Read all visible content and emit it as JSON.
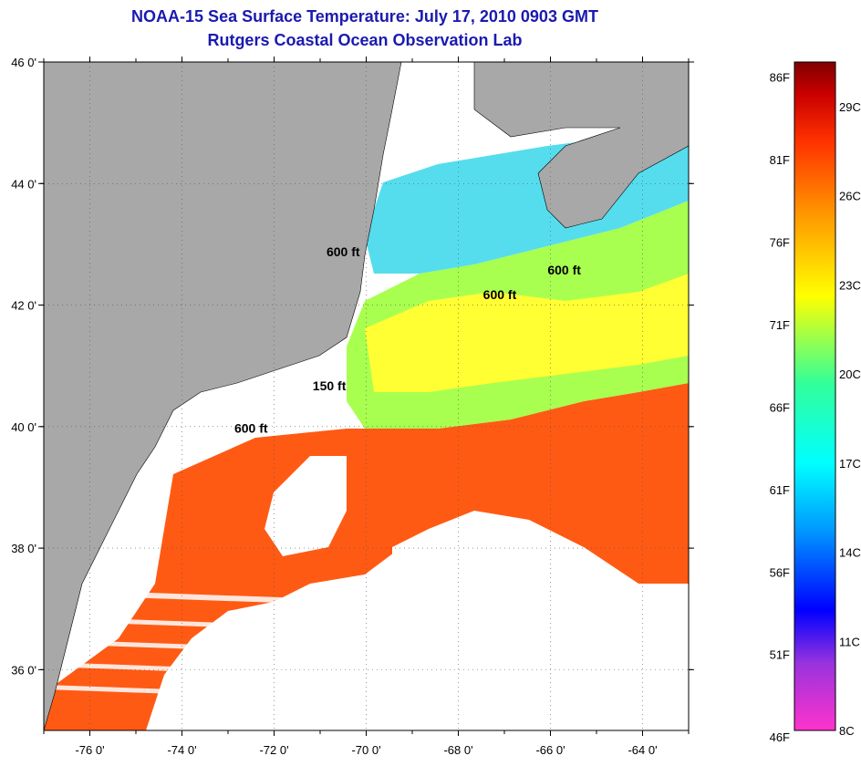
{
  "title": "NOAA-15 Sea Surface Temperature:  July 17, 2010 0903 GMT",
  "subtitle": "Rutgers Coastal Ocean Observation Lab",
  "map": {
    "lon_range": [
      -77,
      -63
    ],
    "lat_range": [
      35,
      46
    ],
    "lat_ticks": [
      {
        "value": 46,
        "label": "46 0'"
      },
      {
        "value": 44,
        "label": "44 0'"
      },
      {
        "value": 42,
        "label": "42 0'"
      },
      {
        "value": 40,
        "label": "40 0'"
      },
      {
        "value": 38,
        "label": "38 0'"
      },
      {
        "value": 36,
        "label": "36 0'"
      }
    ],
    "lon_ticks": [
      {
        "value": -76,
        "label": "-76 0'"
      },
      {
        "value": -74,
        "label": "-74 0'"
      },
      {
        "value": -72,
        "label": "-72 0'"
      },
      {
        "value": -70,
        "label": "-70 0'"
      },
      {
        "value": -68,
        "label": "-68 0'"
      },
      {
        "value": -66,
        "label": "-66 0'"
      },
      {
        "value": -64,
        "label": "-64 0'"
      }
    ],
    "grid": "dotted",
    "contour_labels": [
      {
        "text": "600 ft",
        "lon": -70.5,
        "lat": 42.8
      },
      {
        "text": "600 ft",
        "lon": -65.7,
        "lat": 42.5
      },
      {
        "text": "600 ft",
        "lon": -67.1,
        "lat": 42.1
      },
      {
        "text": "150 ft",
        "lon": -70.8,
        "lat": 40.6
      },
      {
        "text": "600 ft",
        "lon": -72.5,
        "lat": 39.9
      }
    ],
    "colors": {
      "land": "#a8a8a8",
      "cloud": "#ffffff"
    }
  },
  "colorbar": {
    "range_c": [
      8,
      30.5
    ],
    "f_ticks": [
      {
        "value": 86,
        "label": "86F"
      },
      {
        "value": 81,
        "label": "81F"
      },
      {
        "value": 76,
        "label": "76F"
      },
      {
        "value": 71,
        "label": "71F"
      },
      {
        "value": 66,
        "label": "66F"
      },
      {
        "value": 61,
        "label": "61F"
      },
      {
        "value": 56,
        "label": "56F"
      },
      {
        "value": 51,
        "label": "51F"
      },
      {
        "value": 46,
        "label": "46F"
      }
    ],
    "c_ticks": [
      {
        "value": 29,
        "label": "29C"
      },
      {
        "value": 26,
        "label": "26C"
      },
      {
        "value": 23,
        "label": "23C"
      },
      {
        "value": 20,
        "label": "20C"
      },
      {
        "value": 17,
        "label": "17C"
      },
      {
        "value": 14,
        "label": "14C"
      },
      {
        "value": 11,
        "label": "11C"
      },
      {
        "value": 8,
        "label": "8C"
      }
    ],
    "gradient_colors": [
      "#ff33cc",
      "#9933dd",
      "#0000ff",
      "#0099ff",
      "#00ffff",
      "#33ff99",
      "#ffff00",
      "#ff9900",
      "#ff3300",
      "#cc0000",
      "#800000"
    ]
  }
}
